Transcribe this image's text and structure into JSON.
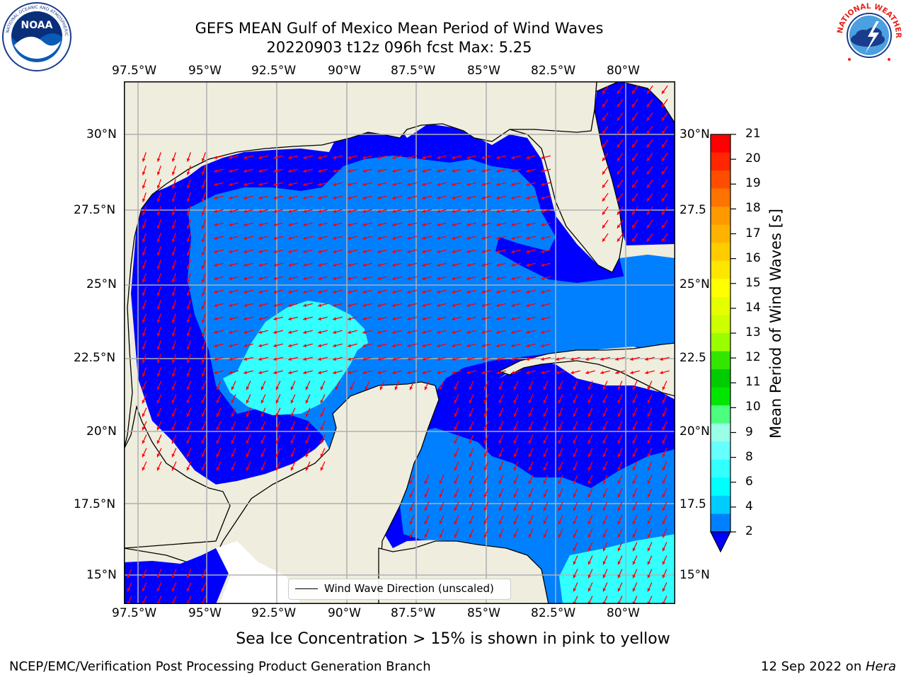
{
  "header": {
    "title_line1": "GEFS MEAN Gulf of Mexico Mean Period of Wind Waves",
    "title_line2": "20220903 t12z 096h fcst   Max: 5.25"
  },
  "logos": {
    "left": {
      "name": "NOAA",
      "ring_text": "NATIONAL OCEANIC AND ATMOSPHERIC ADMINISTRATION · U.S. DEPARTMENT OF COMMERCE"
    },
    "right": {
      "name": "NATIONAL WEATHER SERVICE"
    }
  },
  "map": {
    "lon_labels": [
      "97.5°W",
      "95°W",
      "92.5°W",
      "90°W",
      "87.5°W",
      "85°W",
      "82.5°W",
      "80°W"
    ],
    "lat_labels_left": [
      "30°N",
      "27.5°N",
      "25°N",
      "22.5°N",
      "20°N",
      "17.5°N",
      "15°N"
    ],
    "lat_labels_right": [
      "30°N",
      "27.5",
      "25°N",
      "22.5",
      "20°N",
      "17.5",
      "15°N"
    ],
    "legend_label": "Wind Wave Direction (unscaled)",
    "colors": {
      "land": "#efedde",
      "level_0_2": "#0000ff",
      "level_2_4": "#0080ff",
      "level_4_6": "#33ffff",
      "arrow": "#ff0000",
      "grid": "#b0b0b0"
    }
  },
  "colorbar": {
    "label": "Mean Period of Wind Waves [s]",
    "ticks": [
      "21",
      "20",
      "19",
      "18",
      "17",
      "16",
      "15",
      "14",
      "13",
      "12",
      "11",
      "10",
      "9",
      "8",
      "6",
      "4",
      "2"
    ],
    "band_colors": [
      "#ff0000",
      "#ff2600",
      "#ff4d00",
      "#ff7300",
      "#ff9900",
      "#ffb300",
      "#ffcc00",
      "#ffe600",
      "#ffff00",
      "#e6ff00",
      "#ccff00",
      "#99ff00",
      "#33e600",
      "#00cc00",
      "#00e600",
      "#4dff80",
      "#99ffe6",
      "#66ffff",
      "#33ffff",
      "#00ffff",
      "#00ccff",
      "#0080ff"
    ]
  },
  "footer": {
    "note": "Sea Ice Concentration > 15% is shown in pink to yellow",
    "left": "NCEP/EMC/Verification Post Processing Product Generation Branch",
    "right_prefix": "12 Sep 2022 on ",
    "right_host": "Hera"
  }
}
